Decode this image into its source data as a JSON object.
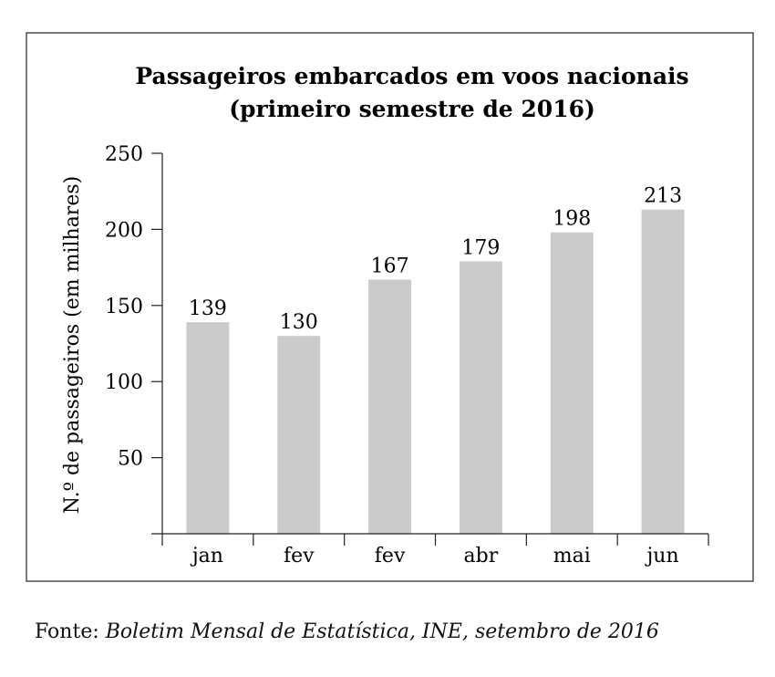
{
  "chart_data": {
    "type": "bar",
    "title": [
      "Passageiros embarcados em voos nacionais",
      "(primeiro semestre de 2016)"
    ],
    "xlabel": "",
    "ylabel": "N.º de passageiros (em milhares)",
    "categories": [
      "jan",
      "fev",
      "fev",
      "abr",
      "mai",
      "jun"
    ],
    "values": [
      139,
      130,
      167,
      179,
      198,
      213
    ],
    "data_labels": [
      "139",
      "130",
      "167",
      "179",
      "198",
      "213"
    ],
    "ylim": [
      0,
      250
    ],
    "yticks": [
      50,
      100,
      150,
      200,
      250
    ],
    "grid": false,
    "legend": "none",
    "bar_color": "#cbcbcb"
  },
  "source": {
    "prefix": "Fonte:",
    "citation": "Boletim Mensal de Estatística, INE, setembro de 2016"
  }
}
